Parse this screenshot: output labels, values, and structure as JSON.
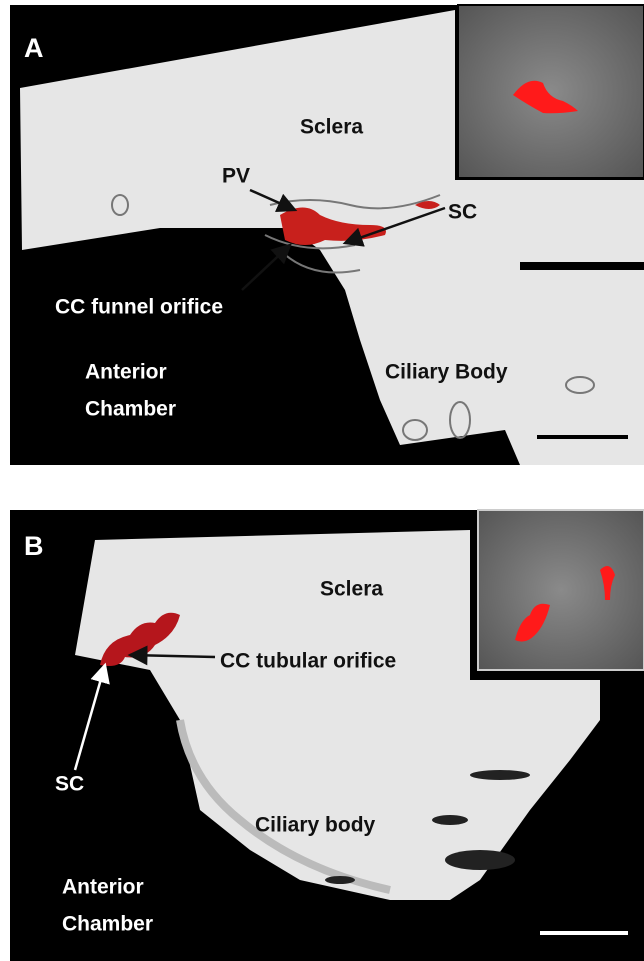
{
  "panels": [
    {
      "label": "A",
      "texts": [
        "Sclera",
        "PV",
        "SC",
        "CC funnel orifice",
        "Anterior",
        "Chamber",
        "Ciliary Body"
      ]
    },
    {
      "label": "B",
      "texts": [
        "Sclera",
        "CC tubular orifice",
        "SC",
        "Ciliary body",
        "Anterior",
        "Chamber"
      ]
    }
  ]
}
